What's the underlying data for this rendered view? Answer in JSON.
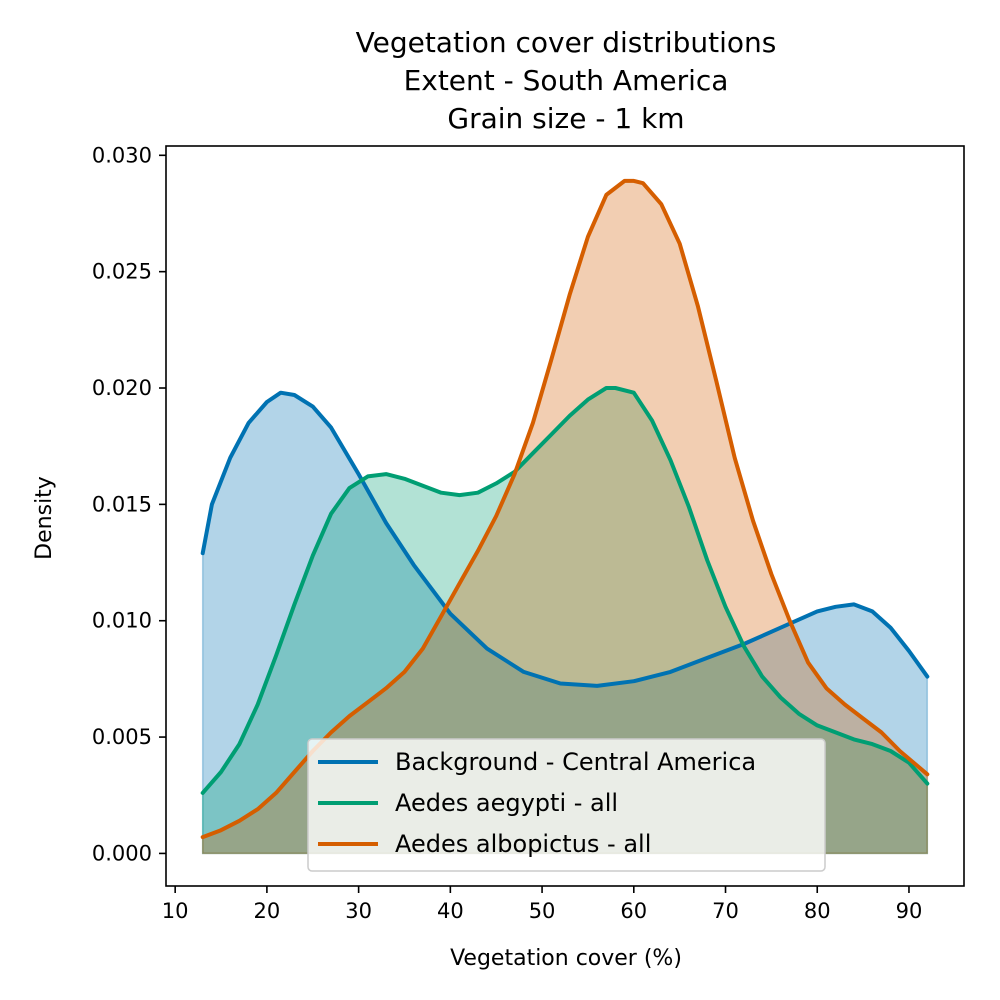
{
  "chart_data": {
    "type": "area",
    "title": [
      "Vegetation cover distributions",
      "Extent - South America",
      "Grain size - 1 km"
    ],
    "xlabel": "Vegetation cover (%)",
    "ylabel": "Density",
    "xlim": [
      9,
      96
    ],
    "ylim": [
      -0.0014,
      0.0304
    ],
    "xticks": [
      10,
      20,
      30,
      40,
      50,
      60,
      70,
      80,
      90
    ],
    "xtick_labels": [
      "10",
      "20",
      "30",
      "40",
      "50",
      "60",
      "70",
      "80",
      "90"
    ],
    "yticks": [
      0,
      0.005,
      0.01,
      0.015,
      0.02,
      0.025,
      0.03
    ],
    "ytick_labels": [
      "0.000",
      "0.005",
      "0.010",
      "0.015",
      "0.020",
      "0.025",
      "0.030"
    ],
    "grid": false,
    "legend": "bottom-center",
    "series": [
      {
        "name": "Background - Central America",
        "color": "#0072b2",
        "x": [
          13,
          14,
          16,
          18,
          20,
          21.5,
          23,
          25,
          27,
          30,
          33,
          36,
          40,
          44,
          48,
          52,
          56,
          60,
          64,
          68,
          72,
          76,
          80,
          82,
          84,
          86,
          88,
          90,
          92
        ],
        "values": [
          0.0129,
          0.015,
          0.017,
          0.0185,
          0.0194,
          0.0198,
          0.0197,
          0.0192,
          0.0183,
          0.0163,
          0.0142,
          0.0124,
          0.0103,
          0.0088,
          0.0078,
          0.0073,
          0.0072,
          0.0074,
          0.0078,
          0.0084,
          0.009,
          0.0097,
          0.0104,
          0.0106,
          0.0107,
          0.0104,
          0.0097,
          0.0087,
          0.0076
        ]
      },
      {
        "name": "Aedes aegypti - all",
        "color": "#009e73",
        "x": [
          13,
          15,
          17,
          19,
          21,
          23,
          25,
          27,
          29,
          31,
          33,
          35,
          37,
          39,
          41,
          43,
          45,
          47,
          49,
          51,
          53,
          55,
          57,
          58,
          60,
          62,
          64,
          66,
          68,
          70,
          72,
          74,
          76,
          78,
          80,
          82,
          84,
          86,
          88,
          90,
          92
        ],
        "values": [
          0.0026,
          0.0035,
          0.0047,
          0.0064,
          0.0085,
          0.0107,
          0.0128,
          0.0146,
          0.0157,
          0.0162,
          0.0163,
          0.0161,
          0.0158,
          0.0155,
          0.0154,
          0.0155,
          0.0159,
          0.0164,
          0.0172,
          0.018,
          0.0188,
          0.0195,
          0.02,
          0.02,
          0.0198,
          0.0186,
          0.0169,
          0.0149,
          0.0126,
          0.0106,
          0.0089,
          0.0076,
          0.0067,
          0.006,
          0.0055,
          0.0052,
          0.0049,
          0.0047,
          0.0044,
          0.0039,
          0.003
        ]
      },
      {
        "name": "Aedes albopictus - all",
        "color": "#d55e00",
        "x": [
          13,
          15,
          17,
          19,
          21,
          23,
          25,
          27,
          29,
          31,
          33,
          35,
          37,
          39,
          41,
          43,
          45,
          47,
          49,
          51,
          53,
          55,
          57,
          59,
          60,
          61,
          63,
          65,
          67,
          69,
          71,
          73,
          75,
          77,
          79,
          81,
          83,
          85,
          87,
          89,
          92
        ],
        "values": [
          0.0007,
          0.001,
          0.0014,
          0.0019,
          0.0026,
          0.0035,
          0.0044,
          0.0052,
          0.0059,
          0.0065,
          0.0071,
          0.0078,
          0.0088,
          0.0102,
          0.0116,
          0.013,
          0.0145,
          0.0163,
          0.0185,
          0.0212,
          0.024,
          0.0265,
          0.0283,
          0.0289,
          0.0289,
          0.0288,
          0.0279,
          0.0262,
          0.0235,
          0.0203,
          0.017,
          0.0143,
          0.012,
          0.01,
          0.0082,
          0.0071,
          0.0064,
          0.0058,
          0.0052,
          0.0044,
          0.0034
        ]
      }
    ]
  }
}
